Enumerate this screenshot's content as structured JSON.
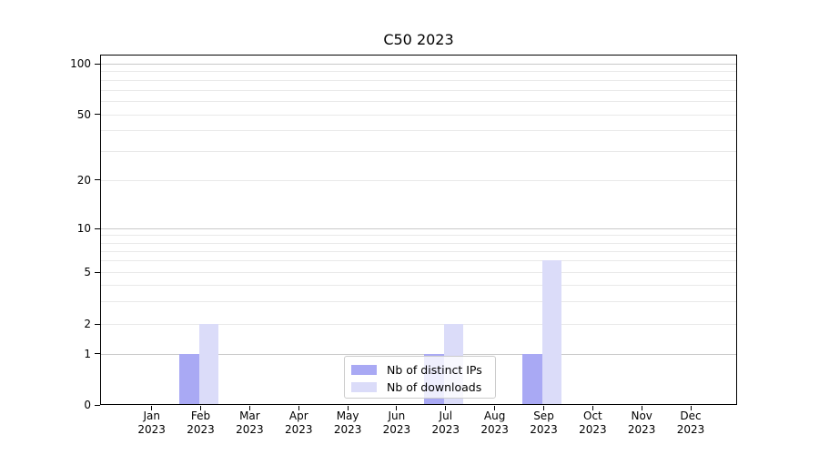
{
  "chart_data": {
    "type": "bar",
    "title": "C50 2023",
    "categories": [
      "Jan 2023",
      "Feb 2023",
      "Mar 2023",
      "Apr 2023",
      "May 2023",
      "Jun 2023",
      "Jul 2023",
      "Aug 2023",
      "Sep 2023",
      "Oct 2023",
      "Nov 2023",
      "Dec 2023"
    ],
    "series": [
      {
        "name": "Nb of distinct IPs",
        "color": "#a9a9f4",
        "values": [
          0,
          1,
          0,
          0,
          0,
          0,
          1,
          0,
          1,
          0,
          0,
          0
        ]
      },
      {
        "name": "Nb of downloads",
        "color": "#dbdcf9",
        "values": [
          0,
          2,
          0,
          0,
          0,
          0,
          2,
          0,
          6,
          0,
          0,
          0
        ]
      }
    ],
    "yaxis": {
      "scale": "log-like",
      "tick_labels": [
        0,
        1,
        2,
        5,
        10,
        20,
        50,
        100
      ],
      "emphasized_gridlines": [
        1,
        10,
        100
      ],
      "minor_gridlines": [
        3,
        4,
        6,
        7,
        8,
        9,
        30,
        40,
        60,
        70,
        80,
        90
      ],
      "range": [
        0,
        112
      ]
    },
    "xaxis": {
      "label_line2": "2023"
    },
    "legend": {
      "position": "lower center"
    },
    "grid": true,
    "colors": {
      "major_grid": "#c9c9c9",
      "minor_grid": "#e9e9e9",
      "axis": "#000000",
      "background": "#ffffff"
    }
  }
}
